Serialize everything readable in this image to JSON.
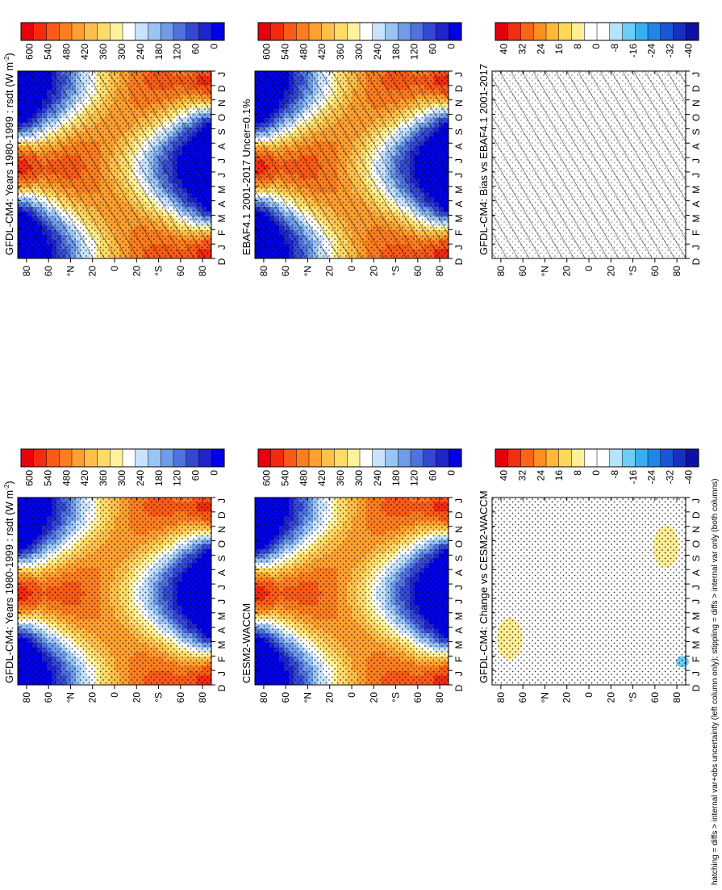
{
  "figure": {
    "footnote": "hatching = diffs > internal var+obs uncertainty (left column only); stippling = diffs > internal var only (both columns)",
    "month_labels": [
      "D",
      "J",
      "F",
      "M",
      "A",
      "M",
      "J",
      "J",
      "A",
      "S",
      "O",
      "N",
      "D",
      "J"
    ],
    "lat_labels": [
      "80",
      "60",
      "°N",
      "20",
      "0",
      "20",
      "°S",
      "60",
      "80"
    ],
    "lat_values": [
      80,
      60,
      40,
      20,
      0,
      -20,
      -40,
      -60,
      -80
    ]
  },
  "colors": {
    "abs_scale": [
      "#e8000a",
      "#f22a10",
      "#fa5a18",
      "#fd7e20",
      "#ffa030",
      "#ffc04a",
      "#ffdb6a",
      "#fff29c",
      "#ffffff",
      "#c9e3ff",
      "#9ac4f4",
      "#6e9ce8",
      "#4f72dc",
      "#3448d2",
      "#1f24cc",
      "#0000e6"
    ],
    "diff_scale": [
      "#e4000e",
      "#f22e10",
      "#fa6418",
      "#fd8e22",
      "#ffb838",
      "#ffd75a",
      "#ffef96",
      "#ffffff",
      "#ffffff",
      "#b4e4ff",
      "#6ecdf6",
      "#38b0f0",
      "#1e86e6",
      "#1a56d8",
      "#1830c0",
      "#1010a8"
    ]
  },
  "chart_data": [
    {
      "type": "heatmap",
      "panel": "top-left",
      "title": "GFDL-CM4: Years 1980-1999 : rsdt (W m",
      "title_sup": "-2",
      "title_end": ")",
      "x": "month (D..J, seasonal cycle)",
      "y": "latitude",
      "zlim": [
        0,
        600
      ],
      "colorbar_ticks": [
        "600",
        "540",
        "480",
        "420",
        "360",
        "300",
        "240",
        "180",
        "120",
        "60",
        "0"
      ],
      "overlay": [
        "hatching",
        "stippling"
      ]
    },
    {
      "type": "heatmap",
      "panel": "top-right",
      "title": "GFDL-CM4: Years 1980-1999 : rsdt (W m",
      "title_sup": "-2",
      "title_end": ")",
      "zlim": [
        0,
        600
      ],
      "colorbar_ticks": [
        "600",
        "540",
        "480",
        "420",
        "360",
        "300",
        "240",
        "180",
        "120",
        "60",
        "0"
      ],
      "overlay": [
        "stippling"
      ]
    },
    {
      "type": "heatmap",
      "panel": "middle-left",
      "title": "EBAF4.1 2001-2017 Uncer=0.1%",
      "zlim": [
        0,
        600
      ],
      "colorbar_ticks": [
        "600",
        "540",
        "480",
        "420",
        "360",
        "300",
        "240",
        "180",
        "120",
        "60",
        "0"
      ],
      "overlay": [
        "hatching",
        "stippling"
      ]
    },
    {
      "type": "heatmap",
      "panel": "middle-right",
      "title": "CESM2-WACCM",
      "zlim": [
        0,
        600
      ],
      "colorbar_ticks": [
        "600",
        "540",
        "480",
        "420",
        "360",
        "300",
        "240",
        "180",
        "120",
        "60",
        "0"
      ],
      "overlay": [
        "stippling"
      ]
    },
    {
      "type": "heatmap",
      "panel": "bottom-left",
      "title": "GFDL-CM4: Bias vs EBAF4.1 2001-2017",
      "zlim": [
        -40,
        40
      ],
      "colorbar_ticks": [
        "40",
        "32",
        "24",
        "16",
        "8",
        "0",
        "-8",
        "-16",
        "-24",
        "-32",
        "-40"
      ],
      "overlay": [
        "hatching",
        "stippling"
      ],
      "field": "near zero everywhere"
    },
    {
      "type": "heatmap",
      "panel": "bottom-right",
      "title": "GFDL-CM4: Change vs CESM2-WACCM",
      "zlim": [
        -40,
        40
      ],
      "colorbar_ticks": [
        "40",
        "32",
        "24",
        "16",
        "8",
        "0",
        "-8",
        "-16",
        "-24",
        "-32",
        "-40"
      ],
      "overlay": [
        "stippling"
      ],
      "blobs": [
        {
          "month": 9.6,
          "lat": -70,
          "value": 6
        },
        {
          "month": 3.2,
          "lat": 72,
          "value": 6
        },
        {
          "month": 1.6,
          "lat": -85,
          "value": -6
        }
      ]
    }
  ]
}
